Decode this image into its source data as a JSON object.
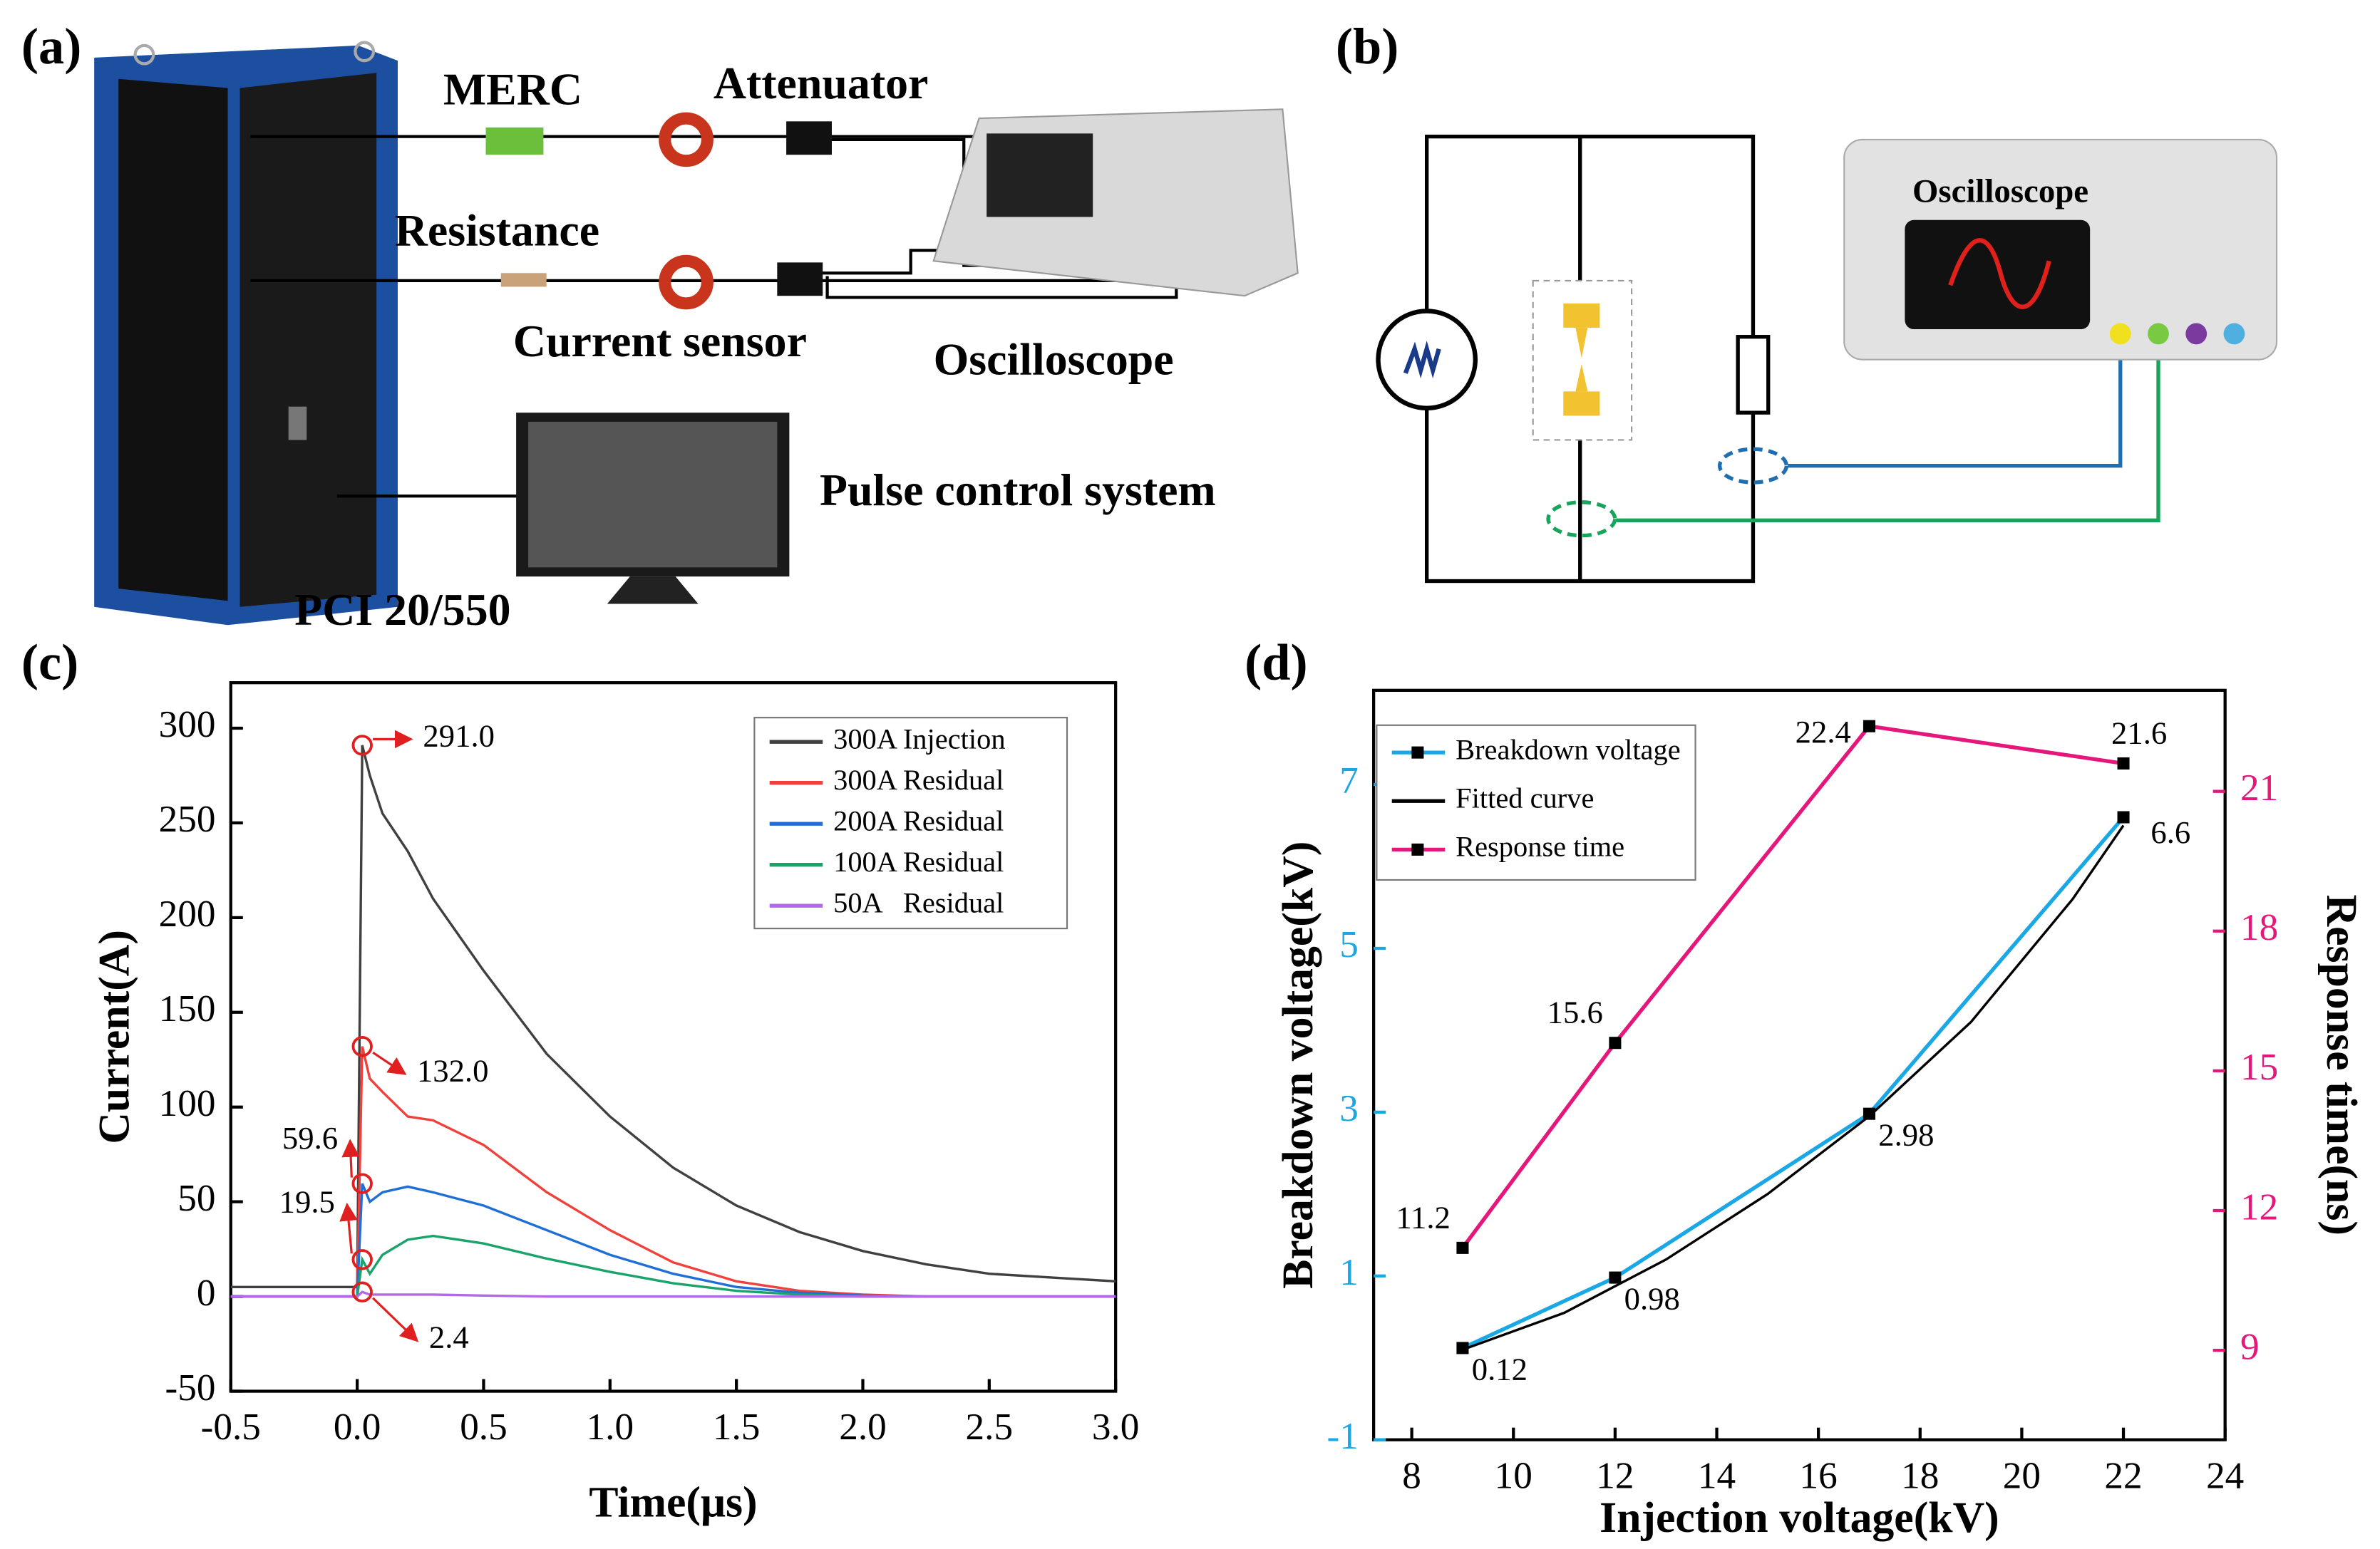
{
  "panel_labels": [
    "(a)",
    "(b)",
    "(c)",
    "(d)"
  ],
  "panel_a": {
    "labels": [
      "MERC",
      "Attenuator",
      "Resistance",
      "Current sensor",
      "Oscilloscope",
      "Pulse control system",
      "PCI 20/550"
    ]
  },
  "panel_b": {
    "labels": [
      "Oscilloscope"
    ]
  },
  "chart_data": [
    {
      "type": "line",
      "x_label": "Time(μs)",
      "y_label": "Current(A)",
      "x": [
        -0.5,
        -0.25,
        0,
        0.02,
        0.05,
        0.1,
        0.2,
        0.3,
        0.5,
        0.75,
        1.0,
        1.25,
        1.5,
        1.75,
        2.0,
        2.25,
        2.5,
        2.75,
        3.0
      ],
      "series": [
        {
          "name": "300A Injection",
          "color": "#404040",
          "values": [
            5,
            5,
            5,
            291,
            275,
            255,
            235,
            210,
            172,
            128,
            95,
            68,
            48,
            34,
            24,
            17,
            12,
            10,
            8
          ]
        },
        {
          "name": "300A Residual",
          "color": "#f0413c",
          "values": [
            0,
            0,
            0,
            132,
            115,
            108,
            95,
            93,
            80,
            55,
            35,
            18,
            8,
            3,
            1,
            0,
            0,
            0,
            0
          ]
        },
        {
          "name": "200A Residual",
          "color": "#1f6fd6",
          "values": [
            0,
            0,
            0,
            59.6,
            50,
            55,
            58,
            55,
            48,
            35,
            22,
            12,
            5,
            2,
            0.5,
            0,
            0,
            0,
            0
          ]
        },
        {
          "name": "100A Residual",
          "color": "#1aa36a",
          "values": [
            0,
            0,
            0,
            19.5,
            12,
            22,
            30,
            32,
            28,
            20,
            13,
            7,
            3,
            1,
            0,
            0,
            0,
            0,
            0
          ]
        },
        {
          "name": "50A   Residual",
          "color": "#b06ae8",
          "values": [
            0,
            0,
            0,
            2.4,
            1,
            1,
            1,
            1,
            0.5,
            0,
            0,
            0,
            0,
            0,
            0,
            0,
            0,
            0,
            0
          ]
        }
      ],
      "annotations": [
        "291.0",
        "132.0",
        "59.6",
        "19.5",
        "2.4"
      ],
      "annotation_color": "#e02020",
      "xlim": [
        -0.5,
        3.0
      ],
      "ylim": [
        -50,
        324
      ],
      "xticks": [
        -0.5,
        {
          "value": 0,
          "label": "0.0"
        },
        0.5,
        {
          "value": 1,
          "label": "1.0"
        },
        1.5,
        {
          "value": 2,
          "label": "2.0"
        },
        2.5,
        {
          "value": 3,
          "label": "3.0"
        }
      ],
      "yticks": [
        -50,
        0,
        50,
        100,
        150,
        200,
        250,
        300
      ],
      "legend": "upper right"
    },
    {
      "type": "line",
      "x_label": "Injection voltage(kV)",
      "y_label": "Breakdown voltage(kV)",
      "y2_label": "Response time(ns)",
      "series": [
        {
          "name": "Breakdown voltage",
          "color": "#1aa7e6",
          "x": [
            9,
            12,
            17,
            22
          ],
          "values": [
            0.12,
            0.98,
            2.98,
            6.6
          ],
          "marker": "square"
        },
        {
          "name": "Fitted curve",
          "color": "#000000",
          "x": [
            9,
            11,
            13,
            15,
            17,
            19,
            21,
            22
          ],
          "values": [
            0.1,
            0.55,
            1.2,
            2.0,
            2.95,
            4.1,
            5.6,
            6.5
          ]
        },
        {
          "name": "Response time",
          "color": "#e6177a",
          "x": [
            9,
            12,
            17,
            22
          ],
          "values": [
            11.2,
            15.6,
            22.4,
            21.6
          ],
          "axis": "y2",
          "marker": "square"
        }
      ],
      "marker_color": "#000000",
      "y_color": "#1aa7e6",
      "y2_color": "#e6177a",
      "xlim": [
        7.25,
        24
      ],
      "ylim": [
        -1,
        8.15
      ],
      "y2lim": [
        7.08,
        23.17
      ],
      "xticks": [
        8,
        10,
        12,
        14,
        16,
        18,
        20,
        22,
        24
      ],
      "yticks": [
        -1,
        1,
        3,
        5,
        7
      ],
      "y2ticks": [
        9,
        12,
        15,
        18,
        21
      ],
      "legend": "upper left"
    }
  ]
}
